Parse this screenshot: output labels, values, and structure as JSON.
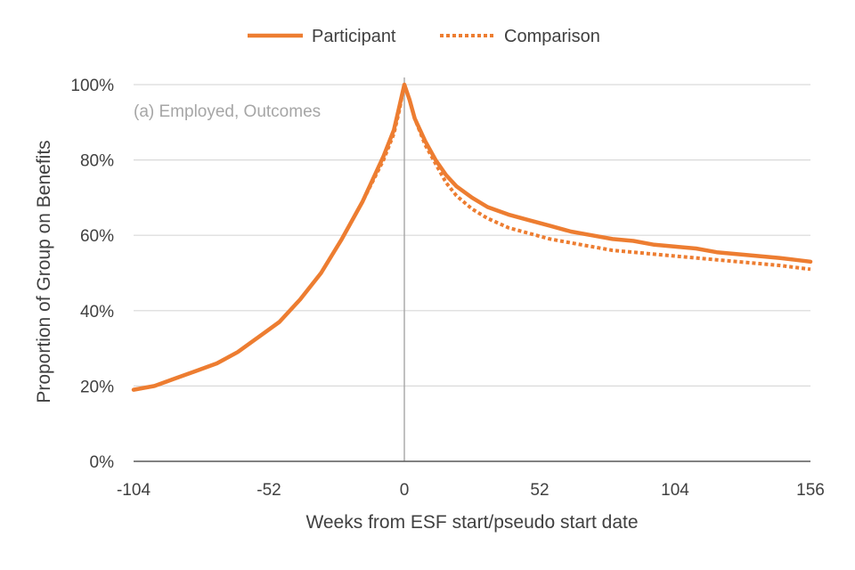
{
  "chart_data": {
    "type": "line",
    "annotation": "(a) Employed, Outcomes",
    "xlabel": "Weeks from ESF start/pseudo start date",
    "ylabel": "Proportion of Group on Benefits",
    "xlim": [
      -104,
      156
    ],
    "ylim": [
      0,
      100
    ],
    "x_ticks": [
      -104,
      -52,
      0,
      52,
      104,
      156
    ],
    "y_ticks": [
      "0%",
      "20%",
      "40%",
      "60%",
      "80%",
      "100%"
    ],
    "y_tick_values": [
      0,
      20,
      40,
      60,
      80,
      100
    ],
    "grid": "horizontal",
    "vertical_reference_line_x": 0,
    "legend_position": "top-center",
    "series": [
      {
        "name": "Participant",
        "style": "solid",
        "color": "#ed7d31",
        "x": [
          -104,
          -96,
          -88,
          -80,
          -72,
          -64,
          -56,
          -48,
          -40,
          -32,
          -24,
          -16,
          -8,
          -4,
          -2,
          0,
          2,
          4,
          8,
          12,
          16,
          20,
          26,
          32,
          40,
          48,
          56,
          64,
          72,
          80,
          88,
          96,
          104,
          112,
          120,
          128,
          136,
          144,
          150,
          156
        ],
        "values": [
          19,
          20,
          22,
          24,
          26,
          29,
          33,
          37,
          43,
          50,
          59,
          69,
          81,
          88,
          94,
          100,
          96,
          91,
          85,
          80,
          76,
          73,
          70,
          67.5,
          65.5,
          64,
          62.5,
          61,
          60,
          59,
          58.5,
          57.5,
          57,
          56.5,
          55.5,
          55,
          54.5,
          54,
          53.5,
          53
        ]
      },
      {
        "name": "Comparison",
        "style": "dotted",
        "color": "#ed7d31",
        "x": [
          -104,
          -96,
          -88,
          -80,
          -72,
          -64,
          -56,
          -48,
          -40,
          -32,
          -24,
          -16,
          -8,
          -4,
          -2,
          0,
          2,
          4,
          8,
          12,
          16,
          20,
          26,
          32,
          40,
          48,
          56,
          64,
          72,
          80,
          88,
          96,
          104,
          112,
          120,
          128,
          136,
          144,
          150,
          156
        ],
        "values": [
          19,
          20,
          22,
          24,
          26,
          29,
          33,
          37,
          43,
          50,
          59,
          69,
          80,
          87,
          93,
          100,
          96,
          91,
          84,
          79,
          74,
          70.5,
          67,
          64.5,
          62,
          60.5,
          59,
          58,
          57,
          56,
          55.5,
          55,
          54.5,
          54,
          53.5,
          53,
          52.5,
          52,
          51.5,
          51
        ]
      }
    ],
    "colors": {
      "axis": "#595959",
      "grid": "#d9d9d9",
      "text": "#404040",
      "annotation": "#a6a6a6",
      "reference_line": "#a6a6a6"
    }
  }
}
